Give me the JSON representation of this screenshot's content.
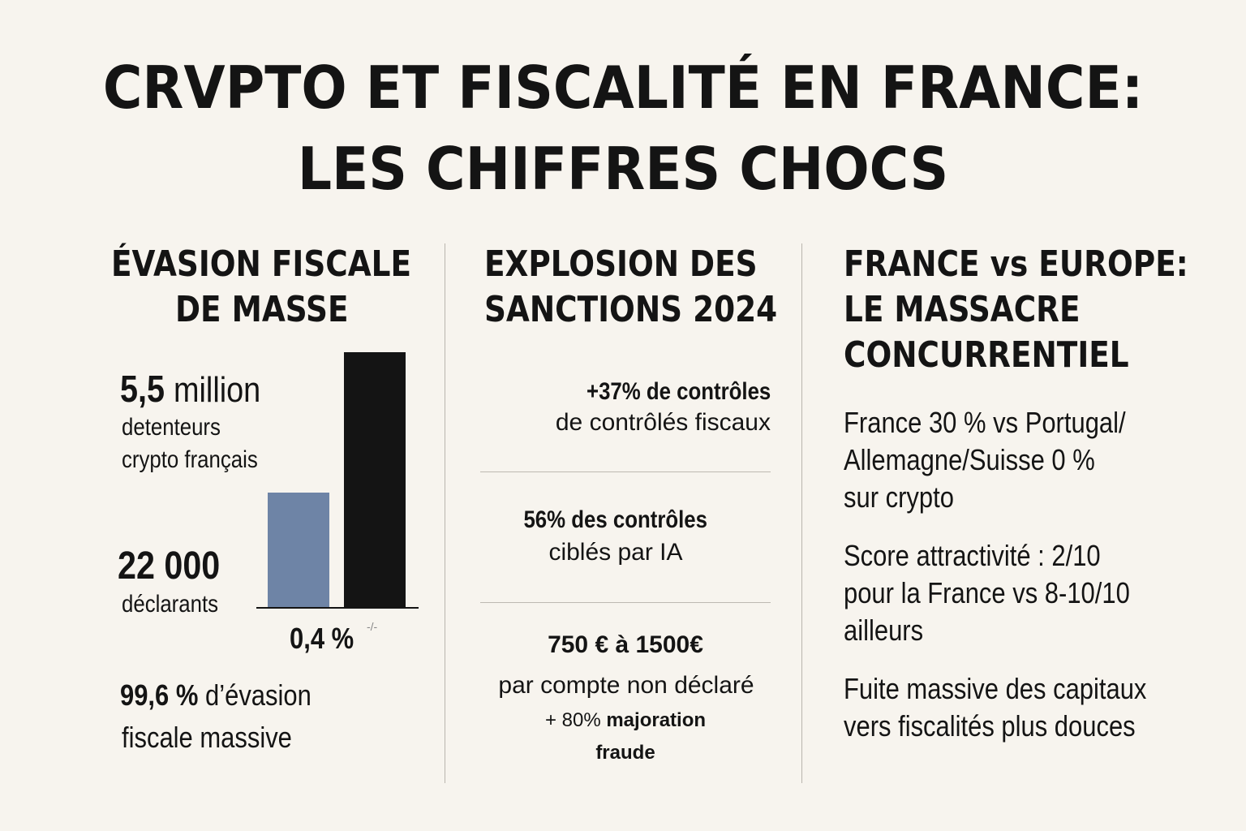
{
  "title": {
    "line1": "CRVPTO ET FISCALITÉ EN FRANCE:",
    "line2": "LES CHIFFRES CHOCS"
  },
  "col1": {
    "heading1": "ÉVASION FISCALE",
    "heading2": "DE MASSE",
    "stat1_value": "5,5",
    "stat1_unit": "million",
    "stat1_desc1": "detenteurs",
    "stat1_desc2": "crypto français",
    "stat2_value": "22 000",
    "stat2_desc": "déclarants",
    "bar_label": "0,4 %",
    "bar_label_extra": "-/-",
    "bottom_value": "99,6 %",
    "bottom_text1": "d’évasion",
    "bottom_text2": "fiscale massive"
  },
  "chart_data": {
    "type": "bar",
    "categories": [
      "déclarants",
      "détenteurs"
    ],
    "values": [
      22000,
      5500000
    ],
    "display_ratio": [
      0.45,
      1.0
    ],
    "colors": [
      "#6e84a6",
      "#141414"
    ]
  },
  "col2": {
    "heading1": "EXPLOSION DES",
    "heading2": "SANCTIONS 2024",
    "item1_bold": "+37% de contrôles",
    "item1_text": "de contrôlés fiscaux",
    "item2_bold": "56% des contrôles",
    "item2_text": "ciblés par IA",
    "item3_bold": "750 € à 1500€",
    "item3_text": "par compte non déclaré",
    "item3_small_prefix": "+ 80%",
    "item3_small_bold": "majoration",
    "item3_small_bold2": "fraude"
  },
  "col3": {
    "heading1": "FRANCE vs EUROPE:",
    "heading2": "LE MASSACRE",
    "heading3": "CONCURRENTIEL",
    "p1_l1": "France 30 % vs Portugal/",
    "p1_l2": "Allemagne/Suisse 0 %",
    "p1_l3": "sur crypto",
    "p2_l1": "Score attractivité : 2/10",
    "p2_l2": "pour la France vs 8-10/10",
    "p2_l3": "ailleurs",
    "p3_l1": "Fuite massive des capitaux",
    "p3_l2": "vers fiscalités plus douces"
  }
}
